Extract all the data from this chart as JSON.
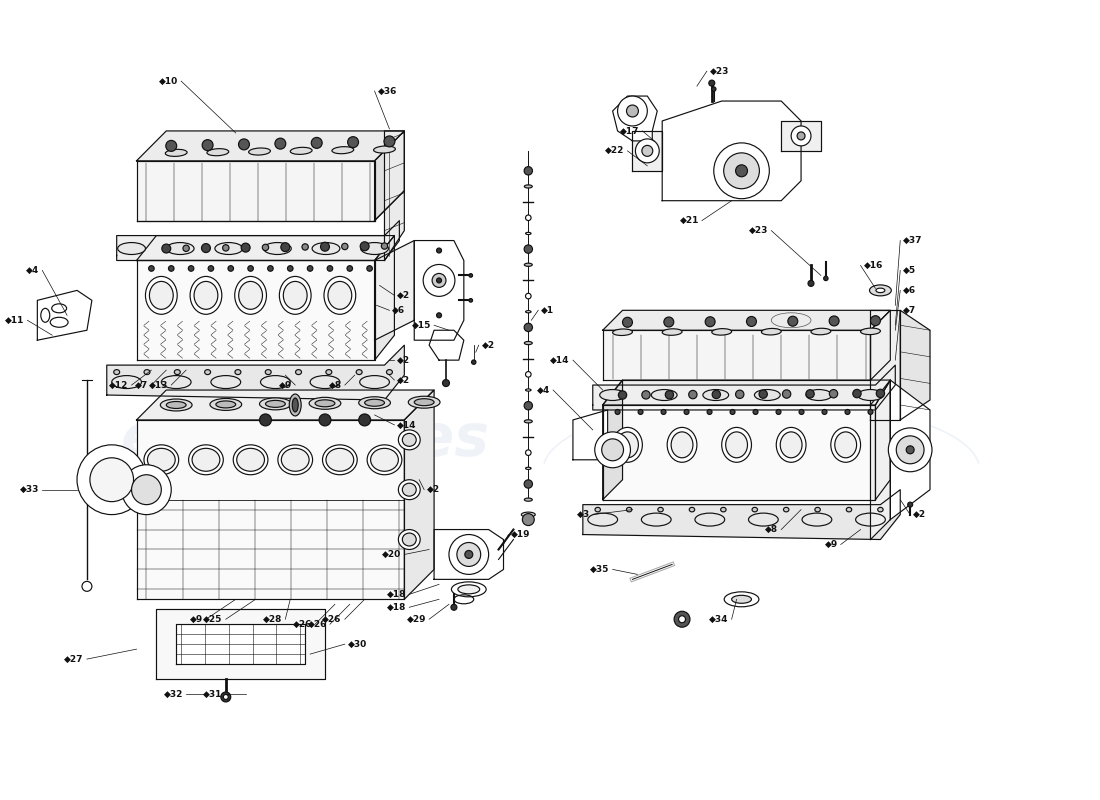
{
  "bg_color": "#ffffff",
  "line_color": "#111111",
  "lw": 0.85,
  "watermark_color": "#c8d4e8",
  "watermark_alpha": 0.28
}
